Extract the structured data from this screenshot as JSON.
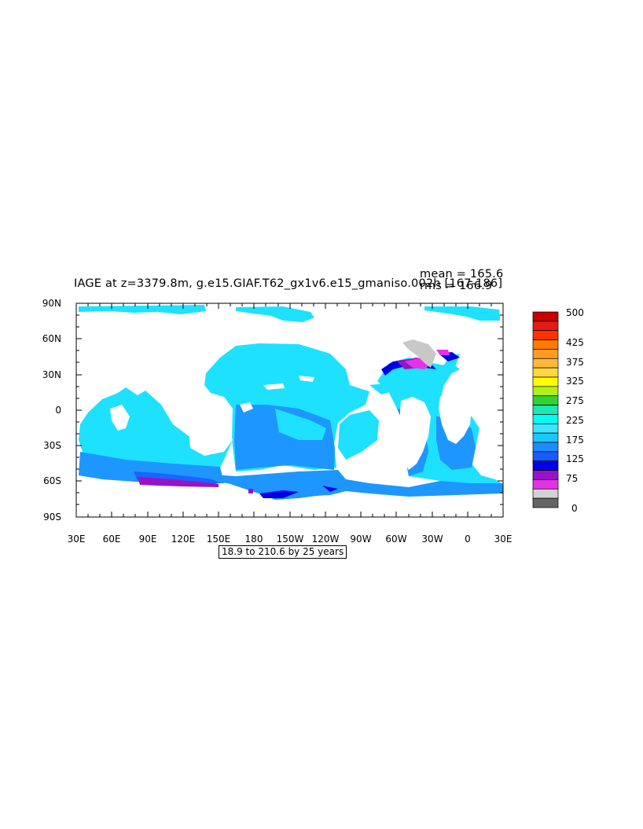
{
  "plot": {
    "title": "IAGE at z=3379.8m, g.e15.GIAF.T62_gx1v6.e15_gmaniso.002h [167-186]",
    "mean_text": "mean = 165.6",
    "rms_text": "rms = 166.9",
    "subtitle": "18.9 to 210.6 by 25 years",
    "lat_labels": [
      "90N",
      "60N",
      "30N",
      "0",
      "30S",
      "60S",
      "90S"
    ],
    "lon_labels": [
      "30E",
      "60E",
      "90E",
      "120E",
      "150E",
      "180",
      "150W",
      "120W",
      "90W",
      "60W",
      "30W",
      "0",
      "30E"
    ]
  },
  "colorbar": {
    "labels": [
      "500",
      "425",
      "375",
      "325",
      "275",
      "225",
      "175",
      "125",
      "75",
      "0"
    ],
    "colors": [
      "#c80000",
      "#e61919",
      "#ff3300",
      "#ff7a00",
      "#ff9a22",
      "#ffb83a",
      "#ffd740",
      "#ffff00",
      "#b4f014",
      "#32d232",
      "#1ee6b4",
      "#00fff0",
      "#3ce6ff",
      "#19c8ff",
      "#1e8cff",
      "#1a5aff",
      "#0000e6",
      "#9614c8",
      "#e632e6",
      "#d2d2d2",
      "#646464"
    ],
    "key_colors": {
      "ocean_main": "#1ee1ff",
      "ocean_deep_blue": "#1e96ff",
      "ocean_blue": "#1a64ff",
      "dark_blue": "#0000e6",
      "purple": "#9614c8",
      "magenta": "#e632e6",
      "gray": "#c8c8c8"
    }
  },
  "chart_data": {
    "type": "heatmap",
    "variable": "IAGE",
    "depth": "z=3379.8m",
    "units_range": [
      0,
      500
    ],
    "contour_levels": [
      0,
      25,
      50,
      75,
      100,
      125,
      150,
      175,
      200,
      225,
      250,
      275,
      300,
      325,
      350,
      375,
      400,
      425,
      450,
      475,
      500
    ],
    "xlim": [
      "30E",
      "30E"
    ],
    "ylim": [
      "90S",
      "90N"
    ],
    "mean": 165.6,
    "rms": 166.9
  }
}
